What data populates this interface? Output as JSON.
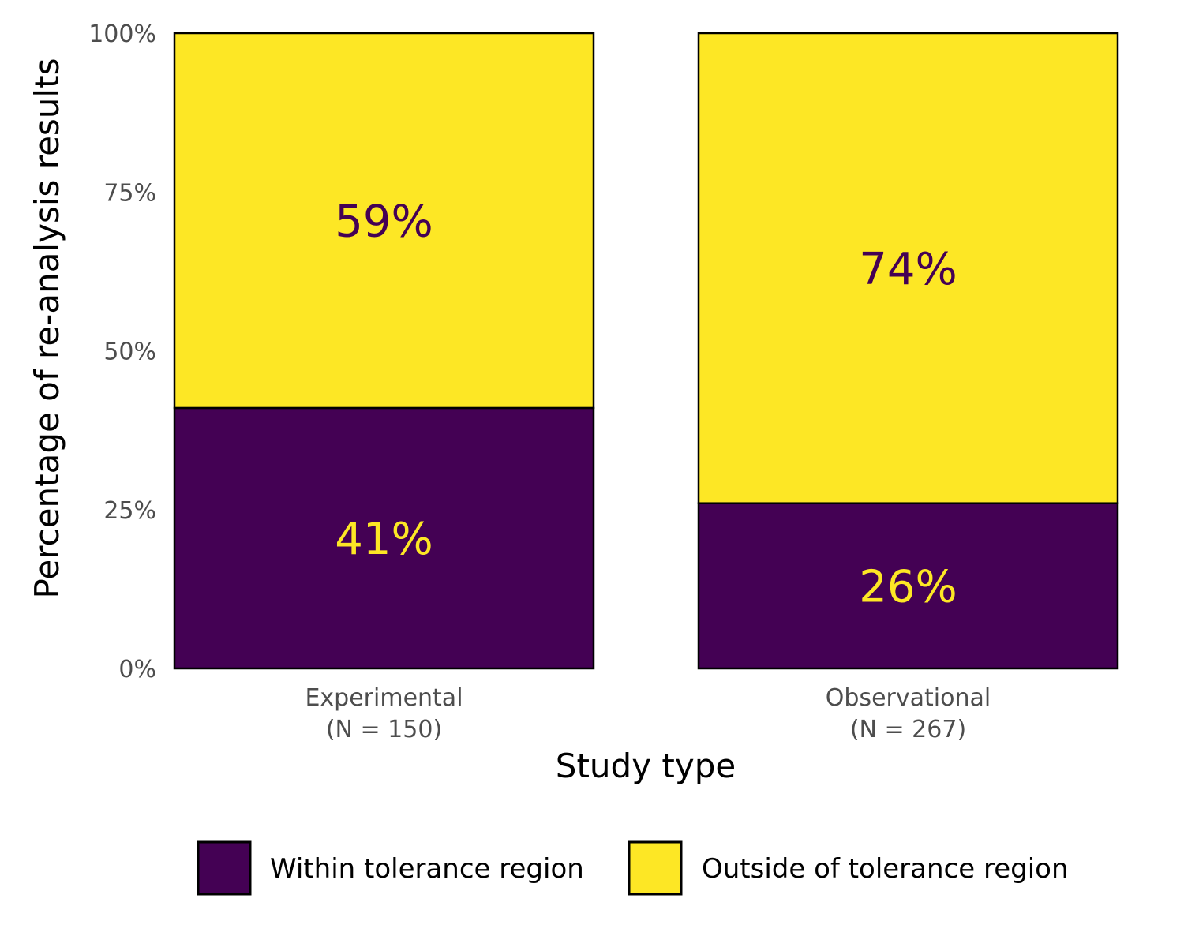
{
  "chart_data": {
    "type": "bar",
    "stacked": true,
    "percent": true,
    "title": "",
    "xlabel": "Study type",
    "ylabel": "Percentage of re-analysis results",
    "categories": [
      {
        "name": "Experimental",
        "n_label": "(N = 150)"
      },
      {
        "name": "Observational",
        "n_label": "(N = 267)"
      }
    ],
    "series": [
      {
        "name": "Within tolerance region",
        "color": "#440154",
        "label_color": "#FDE725",
        "values": [
          41,
          26
        ]
      },
      {
        "name": "Outside of tolerance region",
        "color": "#FDE725",
        "label_color": "#440154",
        "values": [
          59,
          74
        ]
      }
    ],
    "data_labels": [
      [
        "41%",
        "26%"
      ],
      [
        "59%",
        "74%"
      ]
    ],
    "ylim": [
      0,
      100
    ],
    "yticks": [
      0,
      25,
      50,
      75,
      100
    ],
    "ytick_labels": [
      "0%",
      "25%",
      "50%",
      "75%",
      "100%"
    ],
    "grid": false,
    "legend_position": "bottom"
  }
}
